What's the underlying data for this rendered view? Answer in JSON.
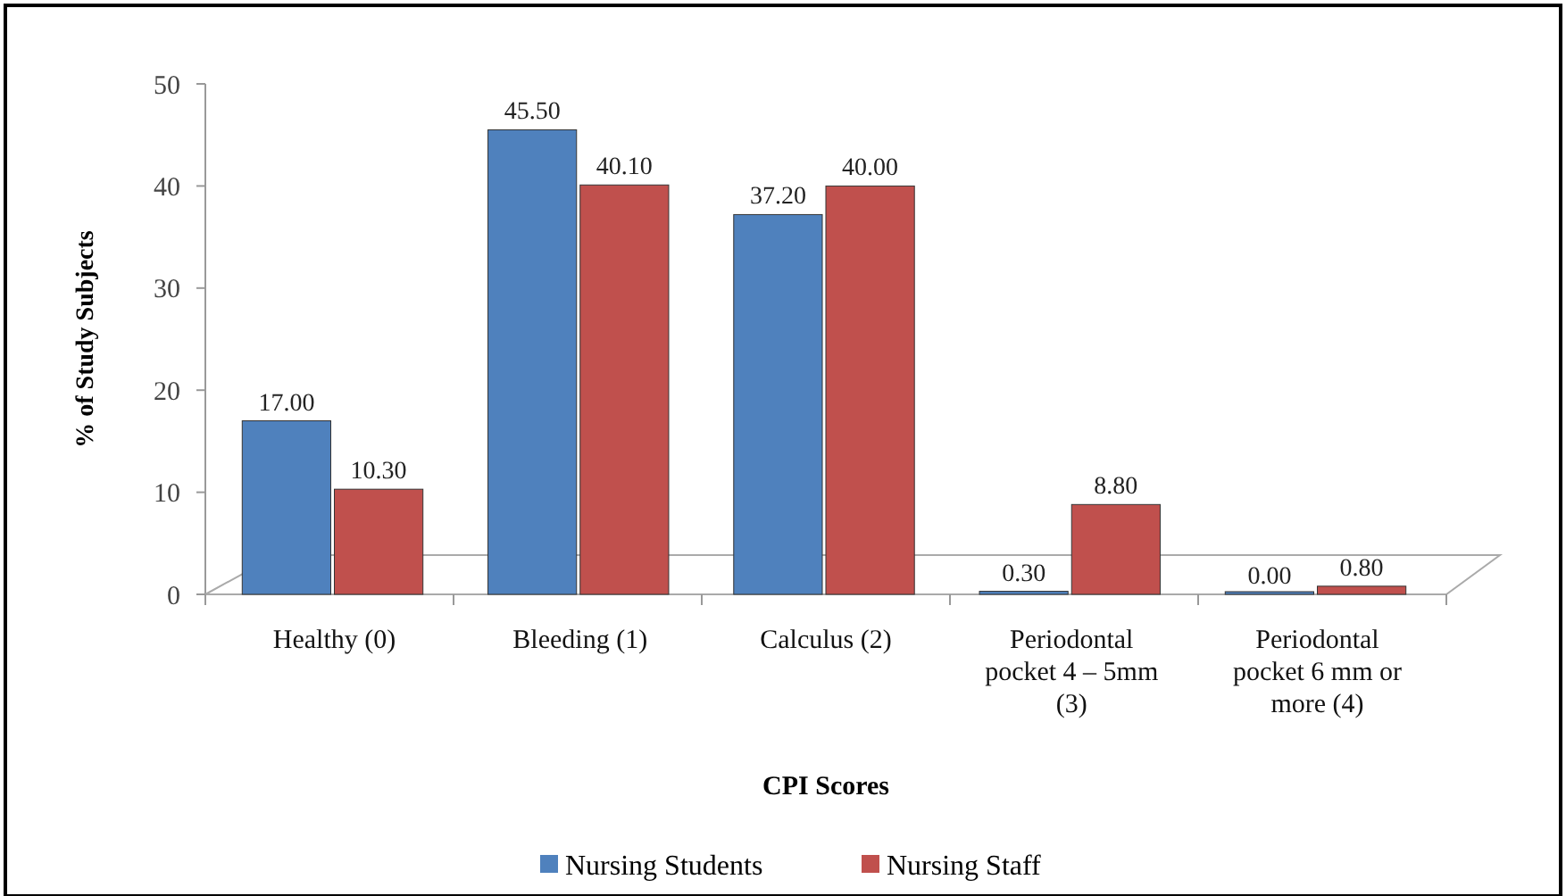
{
  "chart_data": {
    "type": "bar",
    "xlabel": "CPI Scores",
    "ylabel": "% of Study Subjects",
    "categories": [
      "Healthy (0)",
      "Bleeding (1)",
      "Calculus (2)",
      "Periodontal pocket 4 – 5mm (3)",
      "Periodontal pocket 6 mm or more (4)"
    ],
    "series": [
      {
        "name": "Nursing Students",
        "color": "#4f81bd",
        "values": [
          17,
          45.5,
          37.2,
          0.3,
          0
        ],
        "value_labels": [
          "17.00",
          "45.50",
          "37.20",
          "0.30",
          "0.00"
        ]
      },
      {
        "name": "Nursing Staff",
        "color": "#c0504d",
        "values": [
          10.3,
          40.1,
          40,
          8.8,
          0.8
        ],
        "value_labels": [
          "10.30",
          "40.10",
          "40.00",
          "8.80",
          "0.80"
        ]
      }
    ],
    "ylim": [
      0,
      50
    ],
    "yticks": [
      0,
      10,
      20,
      30,
      40,
      50
    ],
    "legend": "bottom"
  }
}
